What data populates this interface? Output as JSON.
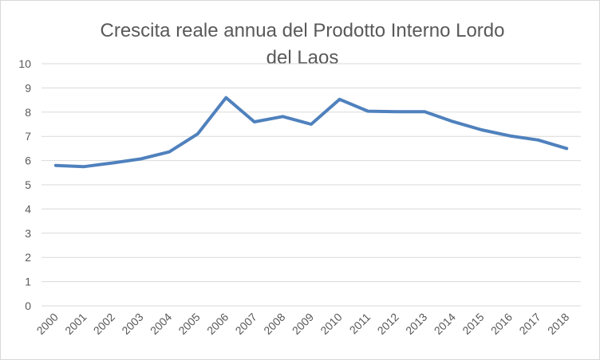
{
  "chart_data": {
    "type": "line",
    "title": "Crescita  reale annua del Prodotto Interno Lordo del Laos",
    "title_lines": [
      "Crescita  reale annua del Prodotto Interno Lordo",
      "del Laos"
    ],
    "categories": [
      "2000",
      "2001",
      "2002",
      "2003",
      "2004",
      "2005",
      "2006",
      "2007",
      "2008",
      "2009",
      "2010",
      "2011",
      "2012",
      "2013",
      "2014",
      "2015",
      "2016",
      "2017",
      "2018"
    ],
    "series": [
      {
        "name": "",
        "color": "#4f81bd",
        "values": [
          5.8,
          5.75,
          5.9,
          6.07,
          6.36,
          7.1,
          8.6,
          7.6,
          7.82,
          7.5,
          8.53,
          8.04,
          8.02,
          8.02,
          7.61,
          7.27,
          7.02,
          6.85,
          6.5
        ]
      }
    ],
    "xlabel": "",
    "ylabel": "",
    "ylim": [
      0,
      10
    ],
    "y_ticks": [
      "0",
      "1",
      "2",
      "3",
      "4",
      "5",
      "6",
      "7",
      "8",
      "9",
      "10"
    ],
    "grid": true,
    "legend": "none"
  }
}
